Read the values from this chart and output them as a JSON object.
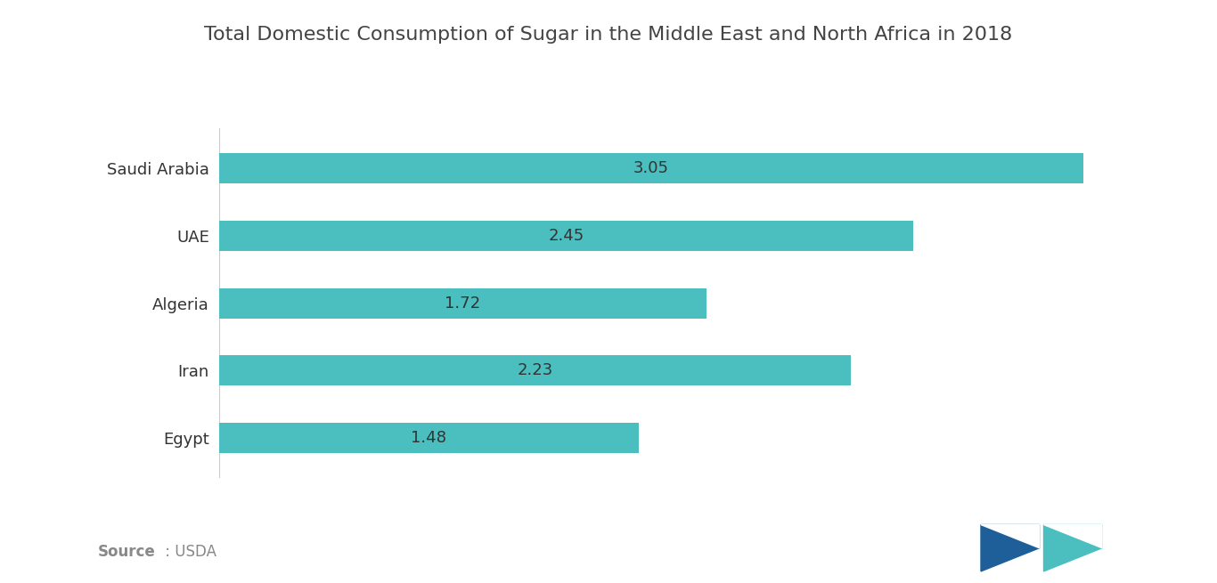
{
  "title": "Total Domestic Consumption of Sugar in the Middle East and North Africa in 2018",
  "categories": [
    "Saudi Arabia",
    "UAE",
    "Algeria",
    "Iran",
    "Egypt"
  ],
  "values": [
    1.48,
    2.23,
    1.72,
    2.45,
    3.05
  ],
  "bar_color": "#4bbfbf",
  "label_color": "#333333",
  "title_color": "#444444",
  "background_color": "#ffffff",
  "source_color": "#888888",
  "xlim": [
    0,
    3.35
  ],
  "title_fontsize": 16,
  "label_fontsize": 13,
  "tick_fontsize": 13,
  "source_fontsize": 12,
  "bar_height": 0.45,
  "logo_color1": "#1e5f99",
  "logo_color2": "#4bbfbf"
}
